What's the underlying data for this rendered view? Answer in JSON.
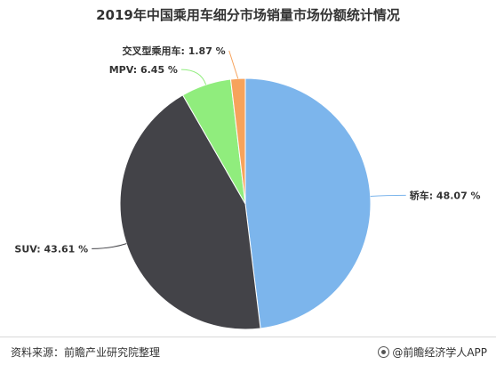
{
  "header": {
    "title": "2019年中国乘用车细分市场销量市场份额统计情况"
  },
  "footer": {
    "source": "资料来源：前瞻产业研究院整理",
    "brand": "@前瞻经济学人APP"
  },
  "chart_data": {
    "type": "pie",
    "title": "2019年中国乘用车细分市场销量市场份额统计情况",
    "slices": [
      {
        "name": "轿车",
        "value": 48.07,
        "label": "轿车: 48.07 %",
        "color": "#7cb5ec"
      },
      {
        "name": "SUV",
        "value": 43.61,
        "label": "SUV: 43.61 %",
        "color": "#434348"
      },
      {
        "name": "MPV",
        "value": 6.45,
        "label": "MPV: 6.45 %",
        "color": "#90ed7d"
      },
      {
        "name": "交叉型乘用车",
        "value": 1.87,
        "label": "交叉型乘用车: 1.87 %",
        "color": "#f7a35c"
      }
    ],
    "start_angle_deg": 0,
    "direction": "clockwise",
    "legend": "none"
  }
}
